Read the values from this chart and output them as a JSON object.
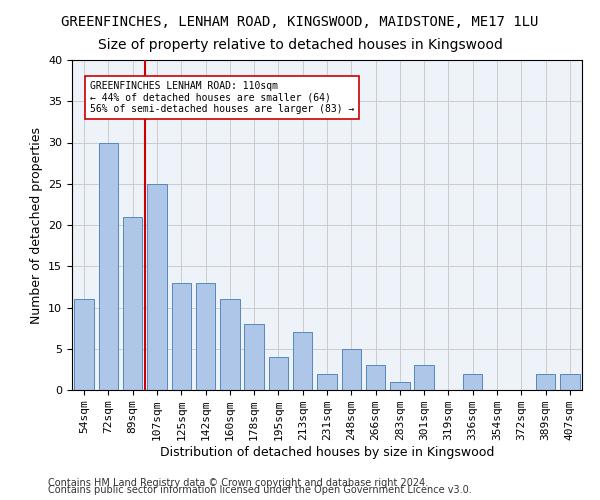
{
  "title1": "GREENFINCHES, LENHAM ROAD, KINGSWOOD, MAIDSTONE, ME17 1LU",
  "title2": "Size of property relative to detached houses in Kingswood",
  "xlabel": "Distribution of detached houses by size in Kingswood",
  "ylabel": "Number of detached properties",
  "categories": [
    "54sqm",
    "72sqm",
    "89sqm",
    "107sqm",
    "125sqm",
    "142sqm",
    "160sqm",
    "178sqm",
    "195sqm",
    "213sqm",
    "231sqm",
    "248sqm",
    "266sqm",
    "283sqm",
    "301sqm",
    "319sqm",
    "336sqm",
    "354sqm",
    "372sqm",
    "389sqm",
    "407sqm"
  ],
  "values": [
    11,
    30,
    21,
    25,
    13,
    13,
    11,
    8,
    4,
    7,
    2,
    5,
    3,
    1,
    3,
    0,
    2,
    0,
    0,
    2,
    2
  ],
  "bar_color": "#aec6e8",
  "bar_edge_color": "#5588bb",
  "vline_x": 2.5,
  "vline_color": "#cc0000",
  "annotation_text": "GREENFINCHES LENHAM ROAD: 110sqm\n← 44% of detached houses are smaller (64)\n56% of semi-detached houses are larger (83) →",
  "annotation_box_color": "#ffffff",
  "annotation_box_edge": "#cc0000",
  "ylim": [
    0,
    40
  ],
  "yticks": [
    0,
    5,
    10,
    15,
    20,
    25,
    30,
    35,
    40
  ],
  "grid_color": "#cccccc",
  "bg_color": "#eef2f9",
  "footer1": "Contains HM Land Registry data © Crown copyright and database right 2024.",
  "footer2": "Contains public sector information licensed under the Open Government Licence v3.0.",
  "title1_fontsize": 10,
  "title2_fontsize": 10,
  "xlabel_fontsize": 9,
  "ylabel_fontsize": 9,
  "tick_fontsize": 8,
  "footer_fontsize": 7
}
